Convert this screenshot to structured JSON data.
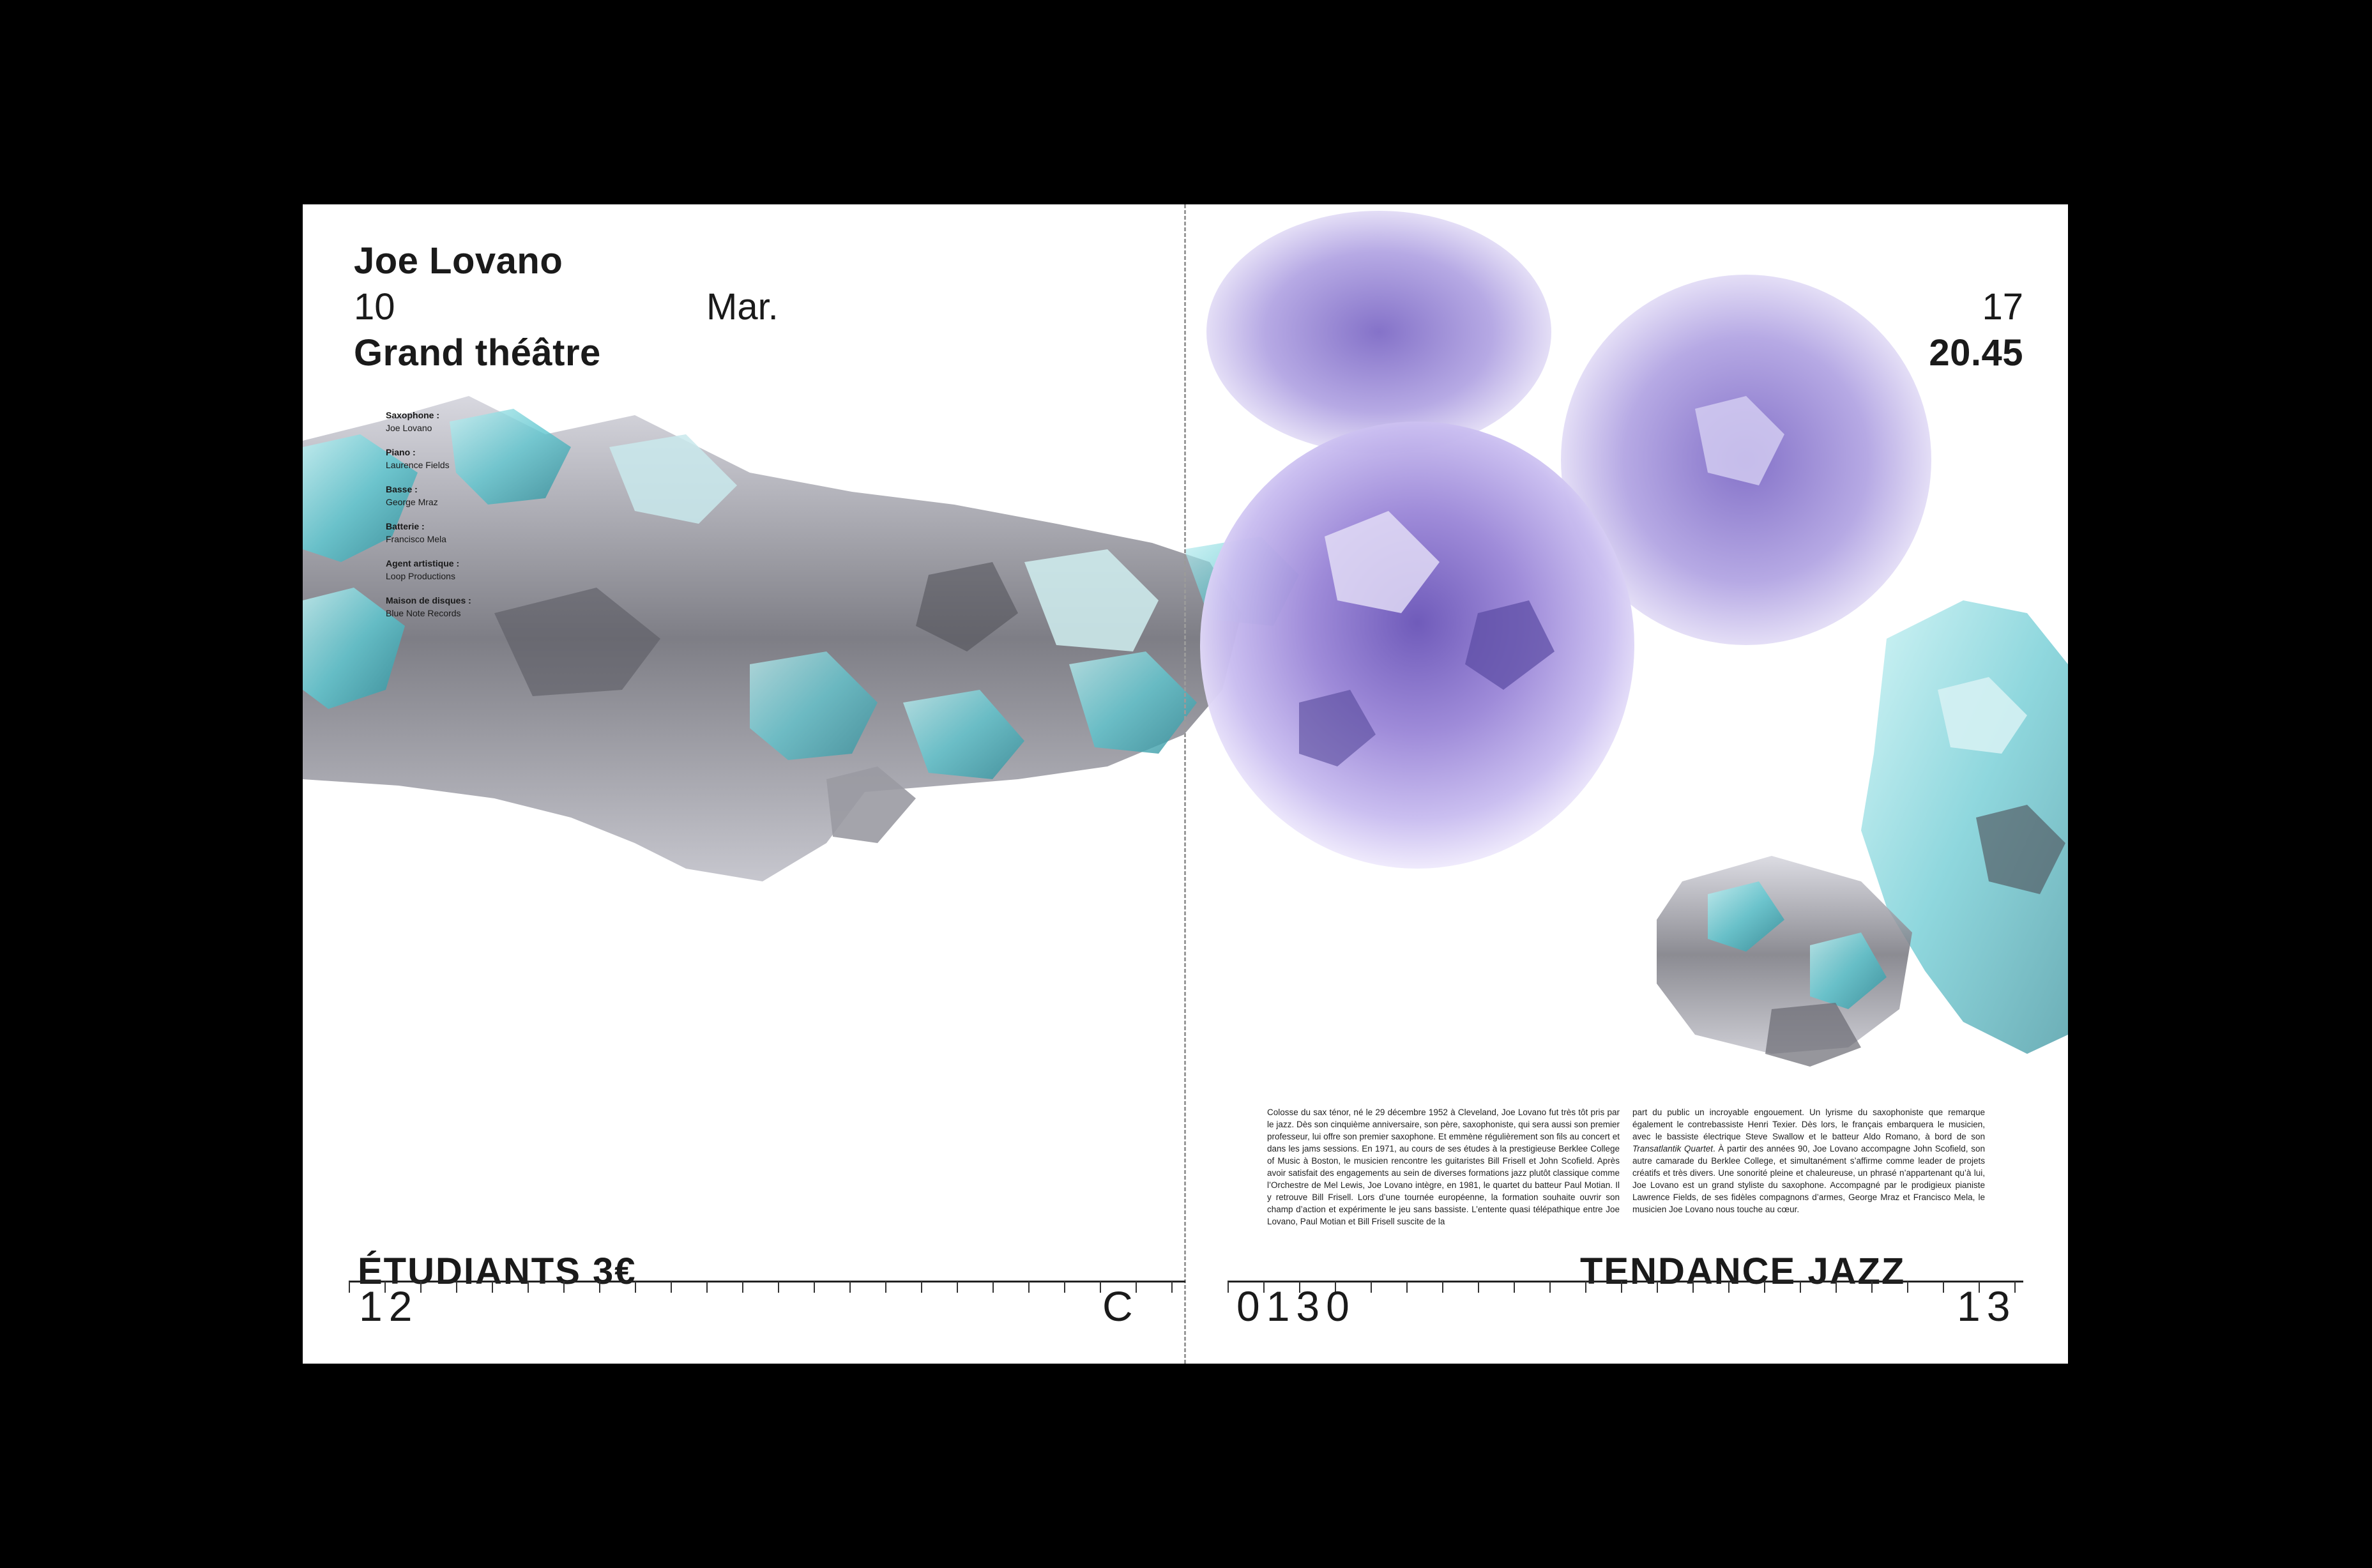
{
  "left_page": {
    "header": {
      "artist": "Joe Lovano",
      "day_number": "10",
      "day_name": "Mar.",
      "venue": "Grand théâtre"
    },
    "credits": [
      {
        "role": "Saxophone :",
        "name": "Joe Lovano"
      },
      {
        "role": "Piano :",
        "name": "Laurence Fields"
      },
      {
        "role": "Basse :",
        "name": "George Mraz"
      },
      {
        "role": "Batterie :",
        "name": "Francisco Mela"
      },
      {
        "role": "Agent artistique :",
        "name": "Loop Productions"
      },
      {
        "role": "Maison de disques :",
        "name": "Blue Note Records"
      }
    ],
    "footer": {
      "label": "ÉTUDIANTS 3€",
      "page_number": "12",
      "letter": "C"
    }
  },
  "right_page": {
    "header": {
      "month_number": "17",
      "time": "20.45"
    },
    "body_col1": "Colosse du sax ténor, né le 29 décembre 1952 à Cleveland, Joe Lovano fut très tôt pris par le jazz. Dès son cinquième anniversaire, son père, saxophoniste, qui sera aussi son premier professeur, lui offre son premier saxophone. Et emmène régulièrement son fils au concert et dans les jams sessions. En 1971, au cours de ses études à la prestigieuse Berklee College of Music à Boston, le musicien rencontre les guitaristes Bill Frisell et John Scofield. Après avoir satisfait des engagements au sein de diverses formations jazz plutôt classique comme l’Orchestre de Mel Lewis, Joe Lovano intègre, en 1981, le quartet du batteur Paul Motian. Il y retrouve Bill Frisell. Lors d’une tournée européenne, la formation souhaite ouvrir son champ d’action et expérimente le jeu sans bassiste. L’entente quasi télépathique entre Joe Lovano, Paul Motian et Bill Frisell suscite de la",
    "body_col2_a": "part du public un incroyable engouement. Un lyrisme du saxophoniste que remarque également le contrebassiste Henri Texier. Dès lors, le français embarquera le musicien, avec le bassiste électrique Steve Swallow et le batteur Aldo Romano, à bord de son ",
    "body_col2_italic": "Transatlantik Quartet",
    "body_col2_b": ". À partir des années 90, Joe Lovano accompagne John Scofield, son autre camarade du Berklee College, et simultanément s’affirme comme leader de projets créatifs et très divers. Une sonorité pleine et chaleureuse, un phrasé n’appartenant qu’à lui, Joe Lovano est un grand styliste du saxophone. Accompagné par le prodigieux pianiste Lawrence Fields, de ses fidèles compagnons d’armes, George Mraz et Francisco Mela, le musicien Joe Lovano nous touche au cœur.",
    "footer": {
      "code": "0130",
      "label": "TENDANCE JAZZ",
      "page_number": "13"
    }
  },
  "colors": {
    "background": "#000000",
    "paper": "#ffffff",
    "ink": "#1a1a1a",
    "cyan_accent": "#7fd6dc",
    "violet_accent": "#9a86d6",
    "silver": "#8c8c96"
  }
}
